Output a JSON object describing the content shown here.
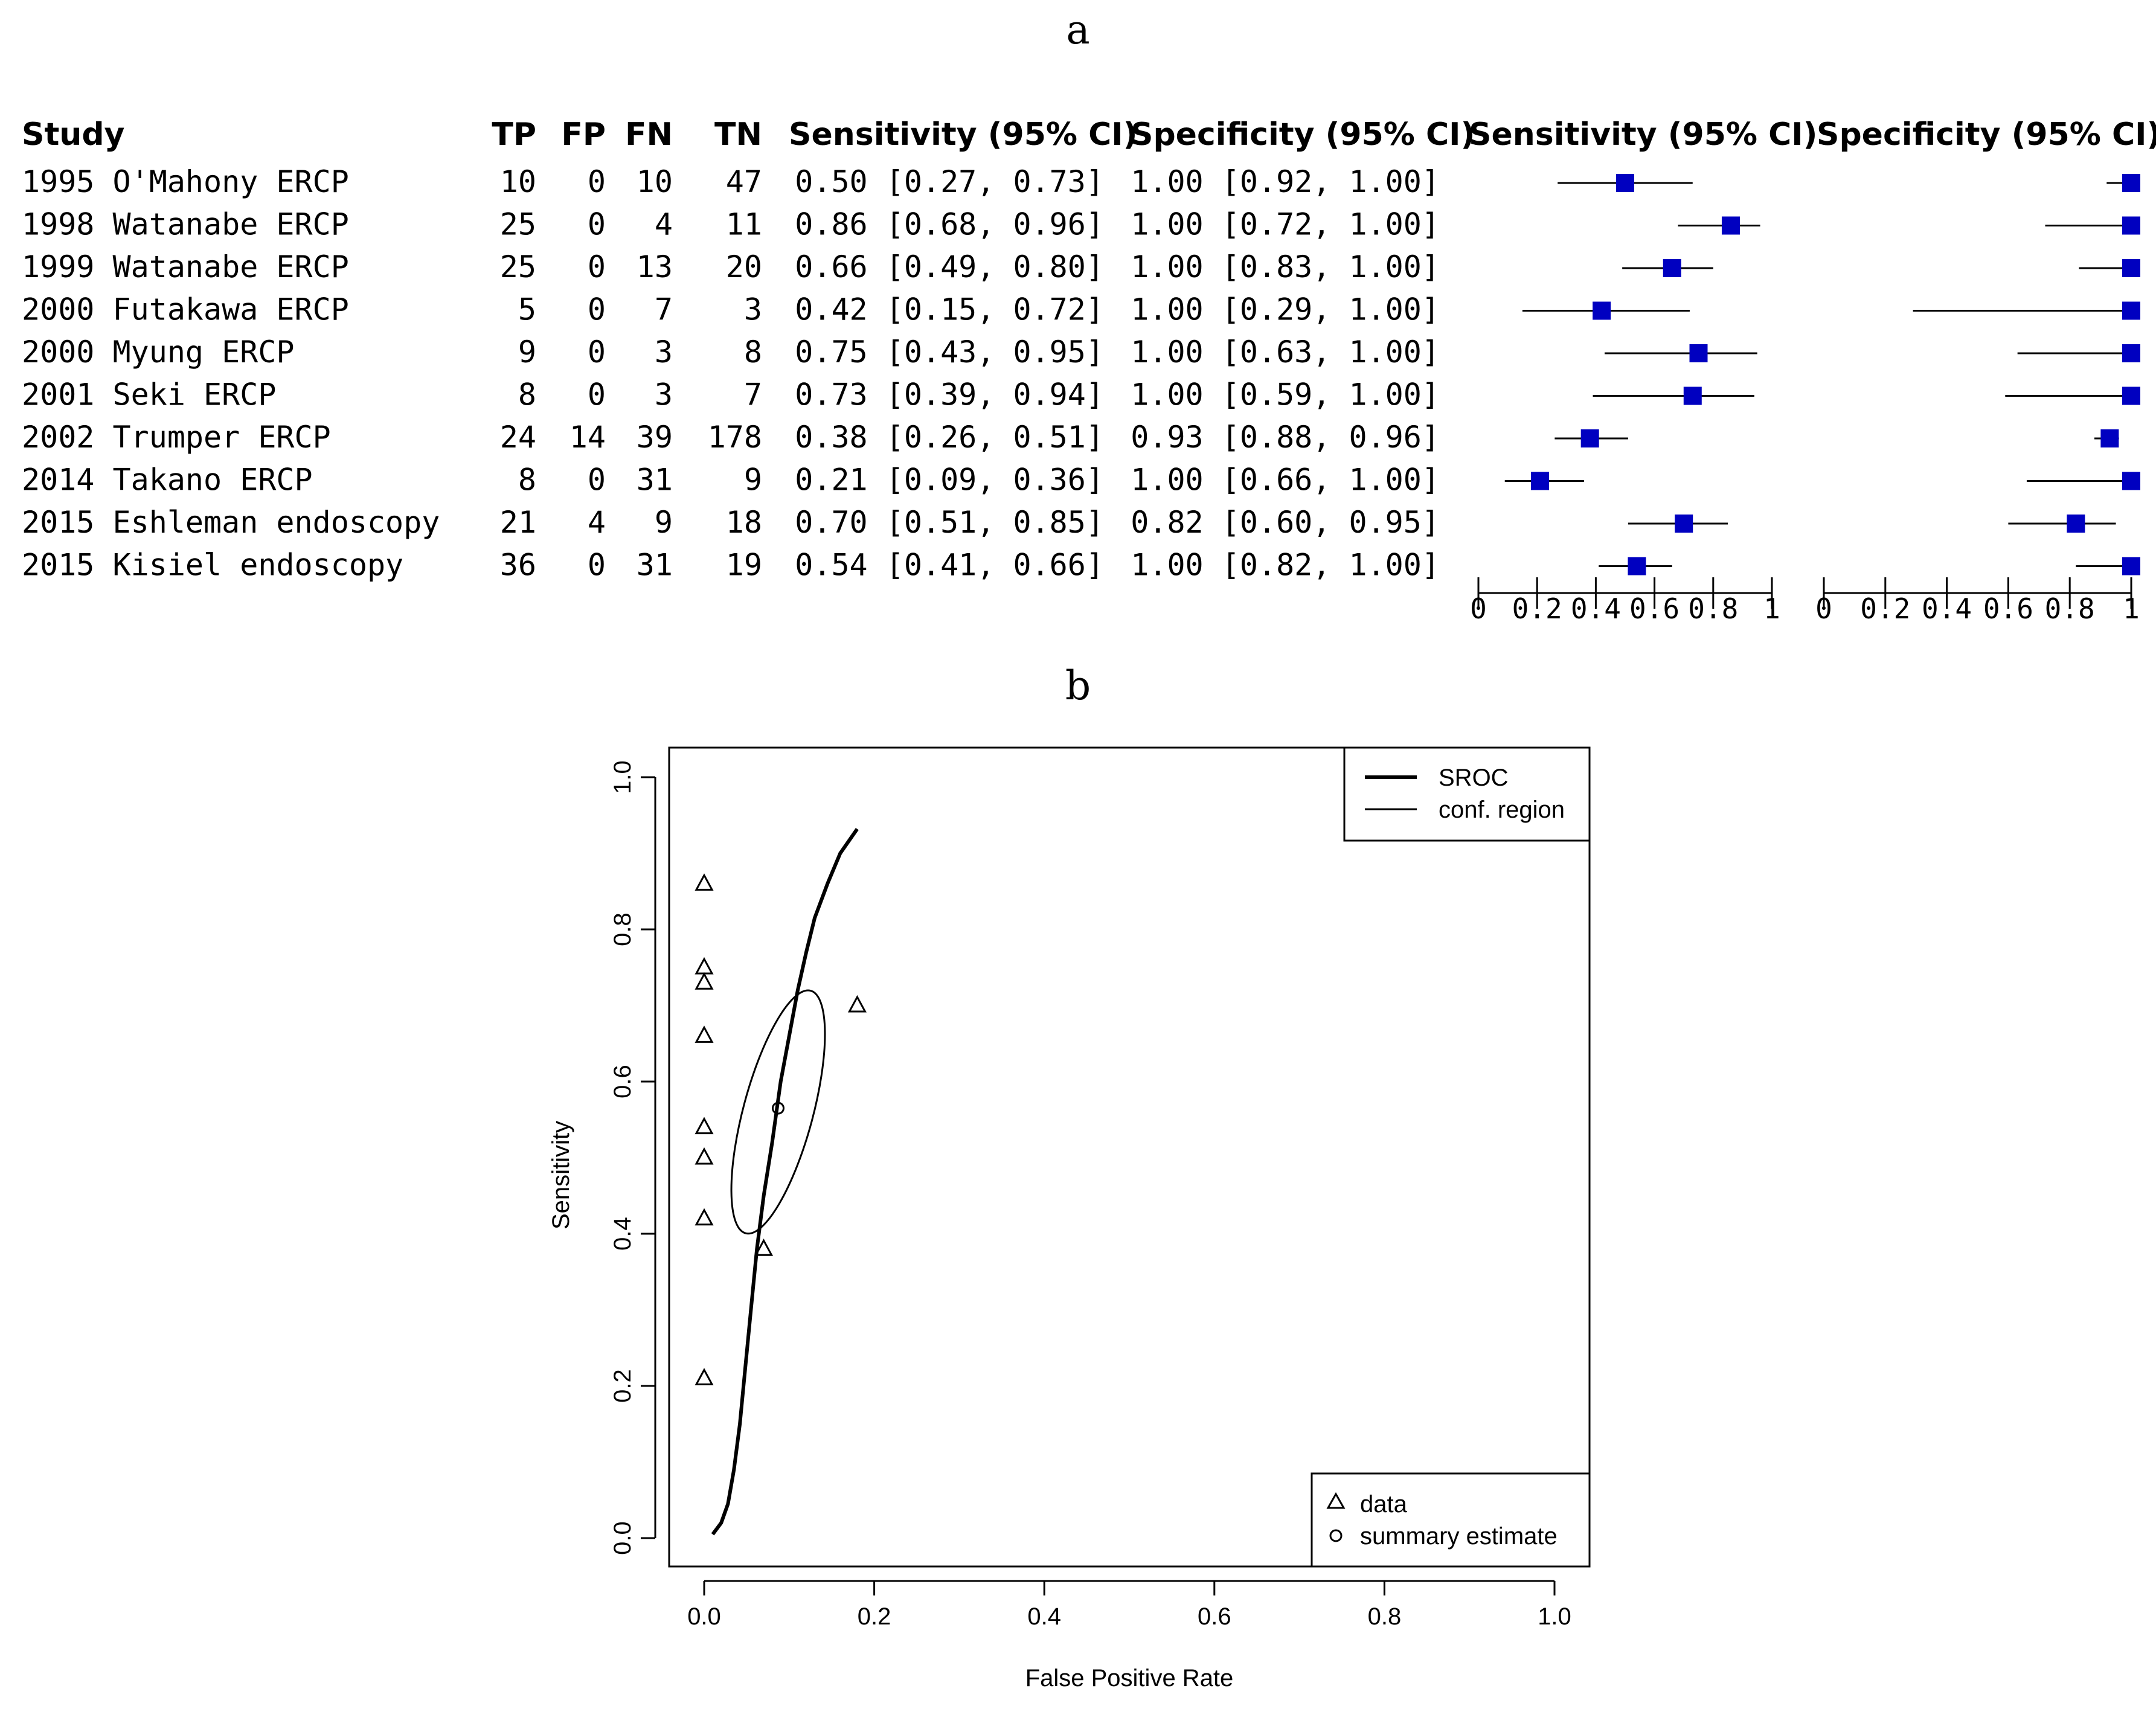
{
  "panel_a": {
    "label": "a",
    "headers": {
      "study": "Study",
      "tp": "TP",
      "fp": "FP",
      "fn": "FN",
      "tn": "TN",
      "sens": "Sensitivity (95% CI)",
      "spec": "Specificity (95% CI)",
      "sens_plot": "Sensitivity (95% CI)",
      "spec_plot": "Specificity (95% CI)"
    },
    "axis_ticks": [
      "0",
      "0.2",
      "0.4",
      "0.6",
      "0.8",
      "1"
    ],
    "marker_color": "#0000c0"
  },
  "panel_b": {
    "label": "b"
  },
  "chart_data": [
    {
      "type": "forest",
      "studies": [
        {
          "study": "1995 O'Mahony ERCP",
          "tp": "10",
          "fp": "0",
          "fn": "10",
          "tn": "47",
          "sens_text": "0.50 [0.27, 0.73]",
          "spec_text": "1.00 [0.92, 1.00]",
          "sens": 0.5,
          "sens_lo": 0.27,
          "sens_hi": 0.73,
          "spec": 1.0,
          "spec_lo": 0.92,
          "spec_hi": 1.0
        },
        {
          "study": "1998 Watanabe ERCP",
          "tp": "25",
          "fp": "0",
          "fn": "4",
          "tn": "11",
          "sens_text": "0.86 [0.68, 0.96]",
          "spec_text": "1.00 [0.72, 1.00]",
          "sens": 0.86,
          "sens_lo": 0.68,
          "sens_hi": 0.96,
          "spec": 1.0,
          "spec_lo": 0.72,
          "spec_hi": 1.0
        },
        {
          "study": "1999 Watanabe ERCP",
          "tp": "25",
          "fp": "0",
          "fn": "13",
          "tn": "20",
          "sens_text": "0.66 [0.49, 0.80]",
          "spec_text": "1.00 [0.83, 1.00]",
          "sens": 0.66,
          "sens_lo": 0.49,
          "sens_hi": 0.8,
          "spec": 1.0,
          "spec_lo": 0.83,
          "spec_hi": 1.0
        },
        {
          "study": "2000 Futakawa ERCP",
          "tp": "5",
          "fp": "0",
          "fn": "7",
          "tn": "3",
          "sens_text": "0.42 [0.15, 0.72]",
          "spec_text": "1.00 [0.29, 1.00]",
          "sens": 0.42,
          "sens_lo": 0.15,
          "sens_hi": 0.72,
          "spec": 1.0,
          "spec_lo": 0.29,
          "spec_hi": 1.0
        },
        {
          "study": "2000 Myung ERCP",
          "tp": "9",
          "fp": "0",
          "fn": "3",
          "tn": "8",
          "sens_text": "0.75 [0.43, 0.95]",
          "spec_text": "1.00 [0.63, 1.00]",
          "sens": 0.75,
          "sens_lo": 0.43,
          "sens_hi": 0.95,
          "spec": 1.0,
          "spec_lo": 0.63,
          "spec_hi": 1.0
        },
        {
          "study": "2001 Seki ERCP",
          "tp": "8",
          "fp": "0",
          "fn": "3",
          "tn": "7",
          "sens_text": "0.73 [0.39, 0.94]",
          "spec_text": "1.00 [0.59, 1.00]",
          "sens": 0.73,
          "sens_lo": 0.39,
          "sens_hi": 0.94,
          "spec": 1.0,
          "spec_lo": 0.59,
          "spec_hi": 1.0
        },
        {
          "study": "2002 Trumper ERCP",
          "tp": "24",
          "fp": "14",
          "fn": "39",
          "tn": "178",
          "sens_text": "0.38 [0.26, 0.51]",
          "spec_text": "0.93 [0.88, 0.96]",
          "sens": 0.38,
          "sens_lo": 0.26,
          "sens_hi": 0.51,
          "spec": 0.93,
          "spec_lo": 0.88,
          "spec_hi": 0.96
        },
        {
          "study": "2014 Takano ERCP",
          "tp": "8",
          "fp": "0",
          "fn": "31",
          "tn": "9",
          "sens_text": "0.21 [0.09, 0.36]",
          "spec_text": "1.00 [0.66, 1.00]",
          "sens": 0.21,
          "sens_lo": 0.09,
          "sens_hi": 0.36,
          "spec": 1.0,
          "spec_lo": 0.66,
          "spec_hi": 1.0
        },
        {
          "study": "2015 Eshleman endoscopy",
          "tp": "21",
          "fp": "4",
          "fn": "9",
          "tn": "18",
          "sens_text": "0.70 [0.51, 0.85]",
          "spec_text": "0.82 [0.60, 0.95]",
          "sens": 0.7,
          "sens_lo": 0.51,
          "sens_hi": 0.85,
          "spec": 0.82,
          "spec_lo": 0.6,
          "spec_hi": 0.95
        },
        {
          "study": "2015 Kisiel endoscopy",
          "tp": "36",
          "fp": "0",
          "fn": "31",
          "tn": "19",
          "sens_text": "0.54 [0.41, 0.66]",
          "spec_text": "1.00 [0.82, 1.00]",
          "sens": 0.54,
          "sens_lo": 0.41,
          "sens_hi": 0.66,
          "spec": 1.0,
          "spec_lo": 0.82,
          "spec_hi": 1.0
        }
      ],
      "xlim": [
        0,
        1
      ],
      "ticks": [
        0,
        0.2,
        0.4,
        0.6,
        0.8,
        1
      ]
    },
    {
      "type": "scatter",
      "xlabel": "False Positive Rate",
      "ylabel": "Sensitivity",
      "xlim": [
        0,
        1.0
      ],
      "ylim": [
        0,
        1.0
      ],
      "xticks": [
        "0.0",
        "0.2",
        "0.4",
        "0.6",
        "0.8",
        "1.0"
      ],
      "yticks": [
        "0.0",
        "0.2",
        "0.4",
        "0.6",
        "0.8",
        "1.0"
      ],
      "data_points": [
        {
          "fpr": 0.0,
          "sens": 0.86
        },
        {
          "fpr": 0.0,
          "sens": 0.75
        },
        {
          "fpr": 0.0,
          "sens": 0.73
        },
        {
          "fpr": 0.0,
          "sens": 0.66
        },
        {
          "fpr": 0.0,
          "sens": 0.54
        },
        {
          "fpr": 0.0,
          "sens": 0.5
        },
        {
          "fpr": 0.0,
          "sens": 0.42
        },
        {
          "fpr": 0.0,
          "sens": 0.21
        },
        {
          "fpr": 0.07,
          "sens": 0.38
        },
        {
          "fpr": 0.18,
          "sens": 0.7
        }
      ],
      "summary_estimate": {
        "fpr": 0.087,
        "sens": 0.565
      },
      "sroc_curve": [
        [
          0.01,
          0.005
        ],
        [
          0.02,
          0.02
        ],
        [
          0.028,
          0.045
        ],
        [
          0.035,
          0.09
        ],
        [
          0.042,
          0.15
        ],
        [
          0.048,
          0.22
        ],
        [
          0.055,
          0.3
        ],
        [
          0.062,
          0.38
        ],
        [
          0.07,
          0.45
        ],
        [
          0.08,
          0.52
        ],
        [
          0.09,
          0.6
        ],
        [
          0.1,
          0.66
        ],
        [
          0.11,
          0.72
        ],
        [
          0.12,
          0.77
        ],
        [
          0.13,
          0.815
        ],
        [
          0.145,
          0.86
        ],
        [
          0.16,
          0.9
        ],
        [
          0.18,
          0.932
        ]
      ],
      "conf_region": {
        "center_fpr": 0.087,
        "center_sens": 0.56,
        "semi_major": 0.165,
        "semi_minor": 0.041,
        "angle_deg": 75
      },
      "legend_top": [
        "SROC",
        "conf. region"
      ],
      "legend_bottom": [
        "data",
        "summary estimate"
      ]
    }
  ]
}
